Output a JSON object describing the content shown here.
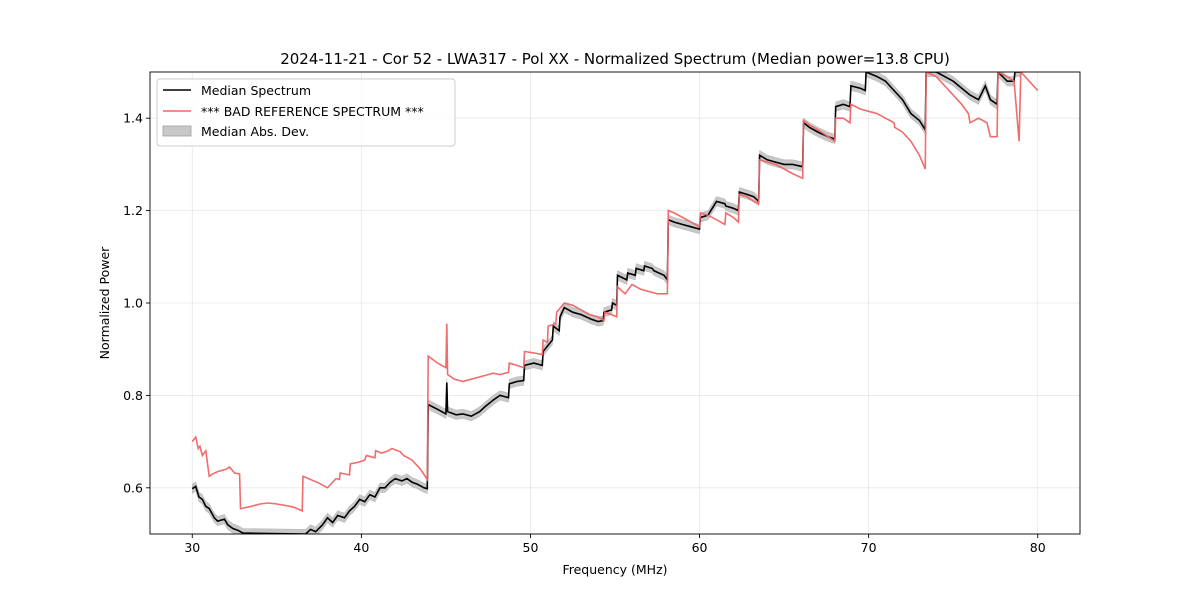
{
  "chart_data": {
    "type": "line",
    "title": "2024-11-21 - Cor 52 - LWA317 - Pol XX - Normalized Spectrum (Median power=13.8 CPU)",
    "xlabel": "Frequency (MHz)",
    "ylabel": "Normalized Power",
    "xlim": [
      27.5,
      82.5
    ],
    "ylim": [
      0.5,
      1.5
    ],
    "xticks": [
      30,
      40,
      50,
      60,
      70,
      80
    ],
    "yticks": [
      0.6,
      0.8,
      1.0,
      1.2,
      1.4
    ],
    "xtick_labels": [
      "30",
      "40",
      "50",
      "60",
      "70",
      "80"
    ],
    "ytick_labels": [
      "0.6",
      "0.8",
      "1.0",
      "1.2",
      "1.4"
    ],
    "grid": true,
    "legend_position": "upper-left",
    "series": [
      {
        "name": "Median Spectrum",
        "color": "#000000",
        "mad": 0.01,
        "x": [
          30.0,
          30.2,
          30.4,
          30.6,
          30.8,
          31.0,
          31.3,
          31.5,
          31.9,
          32.1,
          32.4,
          32.7,
          33.0,
          36.7,
          37.0,
          37.3,
          37.7,
          38.0,
          38.3,
          38.6,
          39.0,
          39.3,
          39.6,
          39.9,
          40.2,
          40.5,
          40.8,
          41.1,
          41.4,
          41.7,
          42.0,
          42.4,
          42.7,
          43.0,
          43.3,
          43.7,
          43.9,
          43.95,
          44.5,
          45.0,
          45.05,
          45.1,
          45.6,
          46.0,
          46.5,
          47.0,
          47.3,
          47.8,
          48.2,
          48.7,
          48.75,
          49.2,
          49.6,
          49.65,
          50.2,
          50.7,
          50.75,
          51.3,
          51.35,
          51.7,
          51.75,
          52.0,
          52.5,
          53.0,
          53.6,
          54.0,
          54.3,
          54.35,
          54.8,
          54.85,
          55.1,
          55.15,
          55.7,
          55.75,
          56.2,
          56.25,
          56.7,
          56.75,
          57.2,
          57.3,
          57.9,
          58.1,
          58.15,
          58.5,
          59.0,
          59.5,
          60.0,
          60.05,
          60.5,
          61.0,
          61.5,
          61.55,
          62.0,
          62.3,
          62.35,
          62.8,
          63.2,
          63.5,
          63.55,
          64.0,
          64.5,
          65.0,
          65.5,
          66.1,
          66.15,
          66.5,
          67.0,
          67.6,
          68.0,
          68.05,
          68.5,
          68.9,
          68.95,
          69.5,
          69.8,
          69.85,
          70.5,
          71.0,
          71.5,
          72.0,
          72.5,
          73.0,
          73.35,
          73.4,
          74.0,
          75.0,
          76.0,
          76.5,
          76.9,
          77.2,
          77.6,
          77.65,
          78.2,
          78.6,
          78.65,
          79.0
        ],
        "y": [
          0.598,
          0.603,
          0.58,
          0.575,
          0.56,
          0.555,
          0.535,
          0.528,
          0.532,
          0.52,
          0.512,
          0.508,
          0.502,
          0.5,
          0.51,
          0.505,
          0.52,
          0.535,
          0.525,
          0.54,
          0.535,
          0.55,
          0.56,
          0.575,
          0.57,
          0.585,
          0.58,
          0.6,
          0.6,
          0.612,
          0.62,
          0.615,
          0.62,
          0.612,
          0.608,
          0.6,
          0.598,
          0.78,
          0.77,
          0.76,
          0.828,
          0.765,
          0.758,
          0.76,
          0.755,
          0.765,
          0.775,
          0.79,
          0.8,
          0.795,
          0.825,
          0.83,
          0.832,
          0.865,
          0.87,
          0.865,
          0.895,
          0.92,
          0.95,
          0.94,
          0.97,
          0.99,
          0.98,
          0.975,
          0.965,
          0.96,
          0.962,
          0.98,
          0.985,
          1.0,
          0.995,
          1.06,
          1.05,
          1.065,
          1.06,
          1.075,
          1.07,
          1.08,
          1.075,
          1.07,
          1.06,
          1.05,
          1.18,
          1.175,
          1.17,
          1.165,
          1.16,
          1.185,
          1.19,
          1.22,
          1.215,
          1.21,
          1.205,
          1.2,
          1.24,
          1.235,
          1.23,
          1.22,
          1.32,
          1.31,
          1.305,
          1.3,
          1.3,
          1.295,
          1.39,
          1.38,
          1.37,
          1.36,
          1.355,
          1.425,
          1.43,
          1.425,
          1.47,
          1.465,
          1.46,
          1.5,
          1.49,
          1.48,
          1.46,
          1.44,
          1.41,
          1.395,
          1.375,
          1.5,
          1.5,
          1.48,
          1.45,
          1.44,
          1.47,
          1.44,
          1.43,
          1.5,
          1.48,
          1.48,
          1.5,
          1.5
        ]
      },
      {
        "name": "*** BAD REFERENCE SPECTRUM ***",
        "color": "#f06464",
        "x": [
          30.0,
          30.2,
          30.35,
          30.45,
          30.6,
          30.8,
          31.0,
          31.2,
          31.5,
          32.0,
          32.2,
          32.5,
          32.8,
          32.85,
          33.5,
          34.0,
          34.5,
          35.0,
          35.5,
          36.0,
          36.5,
          36.55,
          37.0,
          37.5,
          38.0,
          38.5,
          38.7,
          38.75,
          39.0,
          39.3,
          39.35,
          39.8,
          40.2,
          40.3,
          40.8,
          40.85,
          41.2,
          41.6,
          41.8,
          42.3,
          42.5,
          43.0,
          43.5,
          43.9,
          43.95,
          44.5,
          45.0,
          45.05,
          45.1,
          45.5,
          46.0,
          46.5,
          47.0,
          47.5,
          47.8,
          48.2,
          48.7,
          48.75,
          49.2,
          49.6,
          49.65,
          50.2,
          50.7,
          50.75,
          51.0,
          51.05,
          51.5,
          51.55,
          52.0,
          52.5,
          53.0,
          53.5,
          54.0,
          54.35,
          54.4,
          54.8,
          55.1,
          55.15,
          55.6,
          56.0,
          56.5,
          57.0,
          57.5,
          58.1,
          58.15,
          58.5,
          59.0,
          59.5,
          60.0,
          60.05,
          60.5,
          61.0,
          61.5,
          61.55,
          62.0,
          62.3,
          62.35,
          62.8,
          63.2,
          63.5,
          63.55,
          64.0,
          64.5,
          65.0,
          65.5,
          66.1,
          66.15,
          66.5,
          67.0,
          67.6,
          68.0,
          68.05,
          68.5,
          68.9,
          68.95,
          69.5,
          70.0,
          70.5,
          71.0,
          71.5,
          71.55,
          72.0,
          72.5,
          73.0,
          73.35,
          73.4,
          74.0,
          74.5,
          75.0,
          75.5,
          75.9,
          76.0,
          76.5,
          77.0,
          77.2,
          77.6,
          77.65,
          78.2,
          78.6,
          78.9,
          79.0,
          79.5,
          80.0
        ],
        "y": [
          0.7,
          0.71,
          0.685,
          0.69,
          0.67,
          0.68,
          0.625,
          0.63,
          0.635,
          0.64,
          0.645,
          0.632,
          0.63,
          0.555,
          0.56,
          0.565,
          0.567,
          0.565,
          0.562,
          0.558,
          0.55,
          0.625,
          0.618,
          0.61,
          0.6,
          0.62,
          0.618,
          0.632,
          0.63,
          0.628,
          0.652,
          0.655,
          0.66,
          0.67,
          0.665,
          0.68,
          0.675,
          0.68,
          0.685,
          0.678,
          0.67,
          0.66,
          0.64,
          0.618,
          0.885,
          0.87,
          0.86,
          0.955,
          0.845,
          0.835,
          0.83,
          0.835,
          0.84,
          0.845,
          0.848,
          0.845,
          0.85,
          0.87,
          0.865,
          0.86,
          0.895,
          0.892,
          0.888,
          0.92,
          0.915,
          0.95,
          0.955,
          0.98,
          1.0,
          0.995,
          0.985,
          0.975,
          0.97,
          0.962,
          0.98,
          0.975,
          0.97,
          1.035,
          1.02,
          1.04,
          1.03,
          1.025,
          1.02,
          1.02,
          1.2,
          1.195,
          1.185,
          1.175,
          1.165,
          1.195,
          1.19,
          1.18,
          1.17,
          1.195,
          1.185,
          1.175,
          1.235,
          1.23,
          1.22,
          1.215,
          1.31,
          1.305,
          1.3,
          1.29,
          1.28,
          1.27,
          1.395,
          1.385,
          1.375,
          1.36,
          1.35,
          1.4,
          1.4,
          1.39,
          1.43,
          1.42,
          1.415,
          1.41,
          1.4,
          1.39,
          1.38,
          1.37,
          1.35,
          1.32,
          1.29,
          1.5,
          1.49,
          1.47,
          1.45,
          1.43,
          1.41,
          1.39,
          1.4,
          1.39,
          1.36,
          1.36,
          1.5,
          1.49,
          1.48,
          1.35,
          1.5,
          1.48,
          1.46
        ]
      }
    ],
    "legend_entries": [
      "Median Spectrum",
      "*** BAD REFERENCE SPECTRUM ***",
      "Median Abs. Dev."
    ]
  }
}
